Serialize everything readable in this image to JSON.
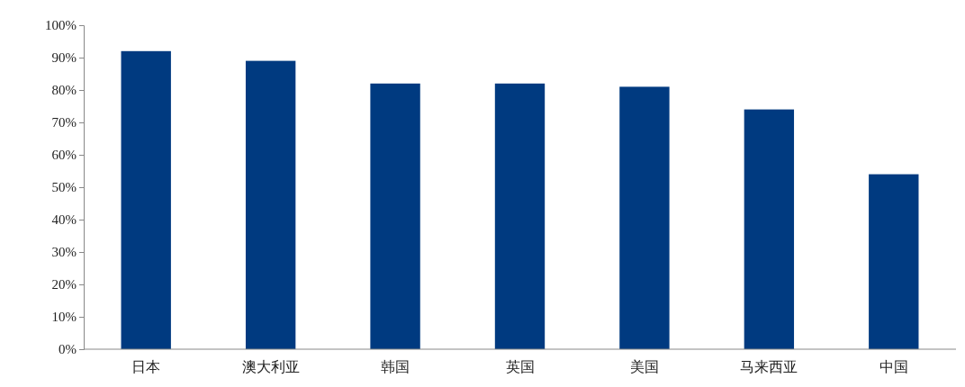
{
  "chart_data": {
    "type": "bar",
    "categories": [
      "日本",
      "澳大利亚",
      "韩国",
      "英国",
      "美国",
      "马来西亚",
      "中国"
    ],
    "values": [
      92,
      89,
      82,
      82,
      81,
      74,
      54
    ],
    "color": "#003a80",
    "ylim": [
      0,
      100
    ],
    "yticks": [
      {
        "value": 0,
        "label": "0%"
      },
      {
        "value": 10,
        "label": "10%"
      },
      {
        "value": 20,
        "label": "20%"
      },
      {
        "value": 30,
        "label": "30%"
      },
      {
        "value": 40,
        "label": "40%"
      },
      {
        "value": 50,
        "label": "50%"
      },
      {
        "value": 60,
        "label": "60%"
      },
      {
        "value": 70,
        "label": "70%"
      },
      {
        "value": 80,
        "label": "80%"
      },
      {
        "value": 90,
        "label": "90%"
      },
      {
        "value": 100,
        "label": "100%"
      }
    ],
    "grid": false
  }
}
